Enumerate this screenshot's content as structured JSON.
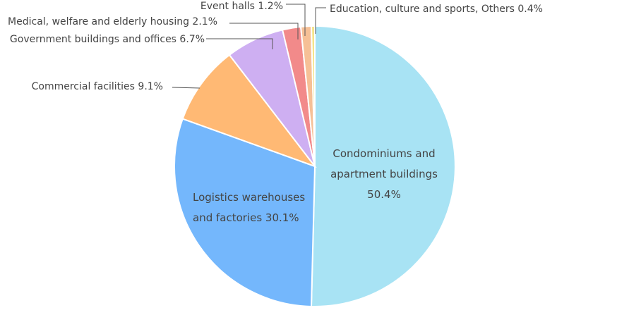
{
  "chart_data": {
    "type": "pie",
    "title": "",
    "slices": [
      {
        "label": [
          "Condominiums and",
          "apartment buildings",
          "50.4%"
        ],
        "value": 50.4,
        "color": "#a8e3f4"
      },
      {
        "label": [
          "Logistics warehouses",
          "and factories 30.1%"
        ],
        "value": 30.1,
        "color": "#74b7fc"
      },
      {
        "label": [
          "Commercial facilities 9.1%"
        ],
        "value": 9.1,
        "color": "#ffb974"
      },
      {
        "label": [
          "Government buildings and offices 6.7%"
        ],
        "value": 6.7,
        "color": "#ceaff2"
      },
      {
        "label": [
          "Medical, welfare and elderly housing 2.1%"
        ],
        "value": 2.1,
        "color": "#f28a8a"
      },
      {
        "label": [
          "Event halls 1.2%"
        ],
        "value": 1.2,
        "color": "#f6c096"
      },
      {
        "label": [
          "Education, culture and  sports, Others 0.4%"
        ],
        "value": 0.4,
        "color": "#f5e48a"
      }
    ],
    "legend": "none"
  }
}
